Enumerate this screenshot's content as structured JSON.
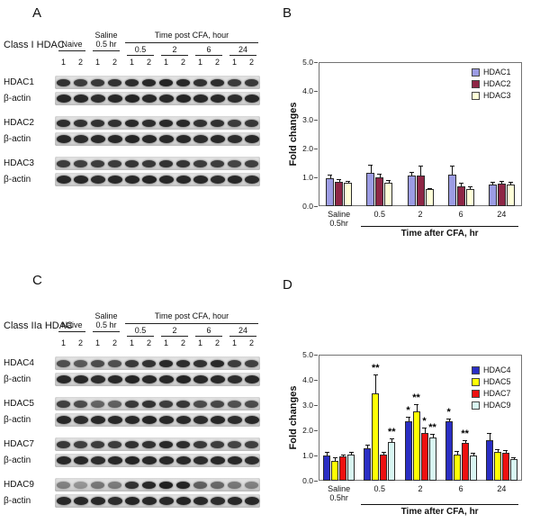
{
  "panels": {
    "a": {
      "letter": "A",
      "class_label": "Class I HDAC",
      "header": {
        "naive": "Naive",
        "saline": "Saline\n0.5 hr",
        "cfa": "Time post CFA, hour",
        "times": [
          "0.5",
          "2",
          "6",
          "24"
        ]
      },
      "lane_numbers": [
        "1",
        "2",
        "1",
        "2",
        "1",
        "2",
        "1",
        "2",
        "1",
        "2",
        "1",
        "2"
      ],
      "rows": [
        {
          "label": "HDAC1",
          "intensities": [
            0.85,
            0.8,
            0.82,
            0.85,
            0.88,
            0.9,
            0.92,
            0.9,
            0.86,
            0.88,
            0.8,
            0.82
          ]
        },
        {
          "label": "β-actin",
          "intensities": [
            0.9,
            0.9,
            0.88,
            0.9,
            0.92,
            0.9,
            0.9,
            0.92,
            0.9,
            0.9,
            0.88,
            0.9
          ]
        },
        {
          "label": "HDAC2",
          "intensities": [
            0.88,
            0.85,
            0.85,
            0.86,
            0.9,
            0.88,
            0.9,
            0.9,
            0.85,
            0.86,
            0.8,
            0.82
          ]
        },
        {
          "label": "β-actin",
          "intensities": [
            0.9,
            0.88,
            0.9,
            0.9,
            0.92,
            0.9,
            0.9,
            0.9,
            0.88,
            0.9,
            0.88,
            0.9
          ]
        },
        {
          "label": "HDAC3",
          "intensities": [
            0.8,
            0.78,
            0.8,
            0.8,
            0.84,
            0.82,
            0.85,
            0.84,
            0.8,
            0.8,
            0.76,
            0.78
          ]
        },
        {
          "label": "β-actin",
          "intensities": [
            0.9,
            0.9,
            0.88,
            0.9,
            0.9,
            0.92,
            0.9,
            0.9,
            0.9,
            0.88,
            0.9,
            0.88
          ]
        }
      ]
    },
    "b": {
      "letter": "B"
    },
    "c": {
      "letter": "C",
      "class_label": "Class IIa HDAC",
      "header": {
        "naive": "Naive",
        "saline": "Saline\n0.5 hr",
        "cfa": "Time post CFA, hour",
        "times": [
          "0.5",
          "2",
          "6",
          "24"
        ]
      },
      "lane_numbers": [
        "1",
        "2",
        "1",
        "2",
        "1",
        "2",
        "1",
        "2",
        "1",
        "2",
        "1",
        "2"
      ],
      "rows": [
        {
          "label": "HDAC4",
          "intensities": [
            0.7,
            0.65,
            0.72,
            0.7,
            0.82,
            0.85,
            0.9,
            0.88,
            0.86,
            0.9,
            0.8,
            0.78
          ]
        },
        {
          "label": "β-actin",
          "intensities": [
            0.9,
            0.9,
            0.88,
            0.9,
            0.92,
            0.9,
            0.9,
            0.92,
            0.9,
            0.9,
            0.88,
            0.9
          ]
        },
        {
          "label": "HDAC5",
          "intensities": [
            0.78,
            0.72,
            0.6,
            0.62,
            0.82,
            0.85,
            0.8,
            0.83,
            0.72,
            0.75,
            0.7,
            0.72
          ]
        },
        {
          "label": "β-actin",
          "intensities": [
            0.9,
            0.88,
            0.9,
            0.9,
            0.9,
            0.92,
            0.9,
            0.9,
            0.88,
            0.9,
            0.88,
            0.9
          ]
        },
        {
          "label": "HDAC7",
          "intensities": [
            0.82,
            0.78,
            0.8,
            0.8,
            0.86,
            0.85,
            0.9,
            0.88,
            0.82,
            0.8,
            0.76,
            0.78
          ]
        },
        {
          "label": "β-actin",
          "intensities": [
            0.9,
            0.9,
            0.88,
            0.9,
            0.92,
            0.9,
            0.9,
            0.9,
            0.88,
            0.9,
            0.9,
            0.88
          ]
        },
        {
          "label": "HDAC9",
          "intensities": [
            0.45,
            0.35,
            0.5,
            0.48,
            0.85,
            0.9,
            0.95,
            0.92,
            0.62,
            0.58,
            0.5,
            0.45
          ]
        },
        {
          "label": "β-actin",
          "intensities": [
            0.9,
            0.9,
            0.9,
            0.88,
            0.92,
            0.9,
            0.9,
            0.92,
            0.9,
            0.88,
            0.9,
            0.9
          ]
        }
      ]
    },
    "d": {
      "letter": "D"
    }
  },
  "chart_data": [
    {
      "panel": "B",
      "type": "bar",
      "title": "",
      "ylabel": "Fold changes",
      "xlabel": "Time after CFA, hr",
      "ylim": [
        0,
        5
      ],
      "yticks": [
        0.0,
        1.0,
        2.0,
        3.0,
        4.0,
        5.0
      ],
      "grid": false,
      "legend_position": "top-right",
      "categories": [
        "Saline\n0.5hr",
        "0.5",
        "2",
        "6",
        "24"
      ],
      "series": [
        {
          "name": "HDAC1",
          "color": "#9c9ce4",
          "values": [
            0.97,
            1.15,
            1.07,
            1.1,
            0.75
          ],
          "errors": [
            0.12,
            0.3,
            0.12,
            0.3,
            0.1
          ],
          "sig": [
            "",
            "",
            "",
            "",
            ""
          ]
        },
        {
          "name": "HDAC2",
          "color": "#8e2746",
          "values": [
            0.85,
            1.0,
            1.05,
            0.7,
            0.78
          ],
          "errors": [
            0.08,
            0.12,
            0.35,
            0.12,
            0.1
          ],
          "sig": [
            "",
            "",
            "",
            "",
            ""
          ]
        },
        {
          "name": "HDAC3",
          "color": "#ffffd8",
          "values": [
            0.8,
            0.8,
            0.58,
            0.6,
            0.75
          ],
          "errors": [
            0.08,
            0.1,
            0.06,
            0.08,
            0.1
          ],
          "sig": [
            "",
            "",
            "",
            "",
            ""
          ]
        }
      ]
    },
    {
      "panel": "D",
      "type": "bar",
      "title": "",
      "ylabel": "Fold changes",
      "xlabel": "Time after CFA, hr",
      "ylim": [
        0,
        5
      ],
      "yticks": [
        0.0,
        1.0,
        2.0,
        3.0,
        4.0,
        5.0
      ],
      "grid": false,
      "legend_position": "top-right",
      "categories": [
        "Saline\n0.5hr",
        "0.5",
        "2",
        "6",
        "24"
      ],
      "series": [
        {
          "name": "HDAC4",
          "color": "#2a2ec4",
          "values": [
            1.0,
            1.3,
            2.35,
            2.35,
            1.6
          ],
          "errors": [
            0.15,
            0.12,
            0.2,
            0.12,
            0.3
          ],
          "sig": [
            "",
            "",
            "*",
            "*",
            ""
          ]
        },
        {
          "name": "HDAC5",
          "color": "#ffff04",
          "values": [
            0.8,
            3.45,
            2.75,
            1.05,
            1.15
          ],
          "errors": [
            0.12,
            0.75,
            0.3,
            0.12,
            0.1
          ],
          "sig": [
            "",
            "**",
            "**",
            "",
            ""
          ]
        },
        {
          "name": "HDAC7",
          "color": "#ee1010",
          "values": [
            0.95,
            1.05,
            1.9,
            1.5,
            1.1
          ],
          "errors": [
            0.1,
            0.1,
            0.22,
            0.12,
            0.1
          ],
          "sig": [
            "",
            "",
            "*",
            "**",
            ""
          ]
        },
        {
          "name": "HDAC9",
          "color": "#d8f6f2",
          "values": [
            1.05,
            1.55,
            1.7,
            1.0,
            0.85
          ],
          "errors": [
            0.1,
            0.12,
            0.15,
            0.1,
            0.08
          ],
          "sig": [
            "",
            "**",
            "**",
            "",
            ""
          ]
        }
      ]
    }
  ]
}
